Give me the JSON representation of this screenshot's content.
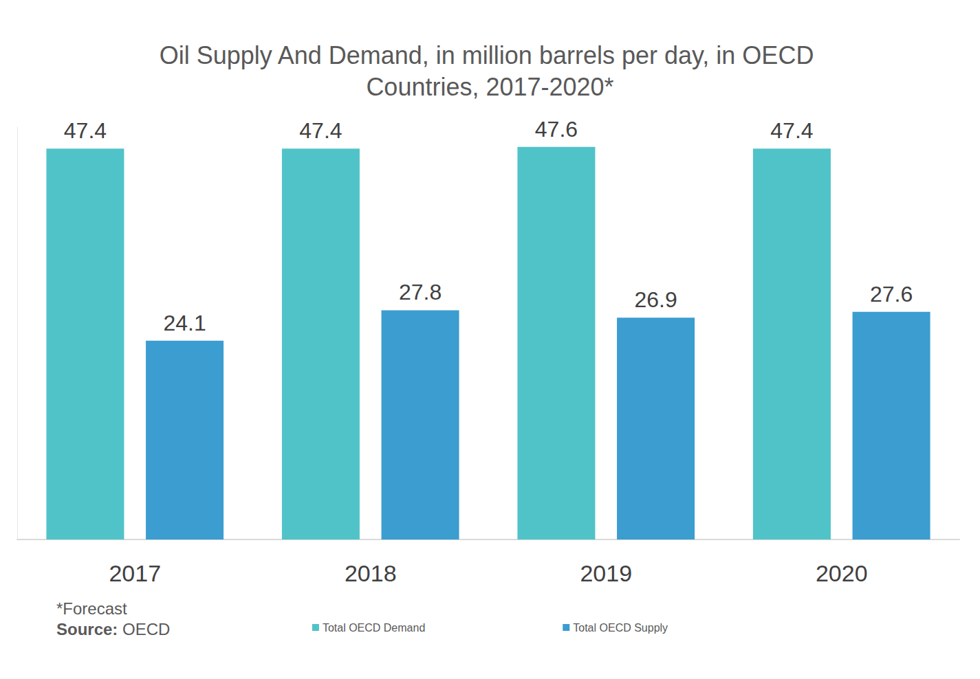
{
  "chart_data": {
    "type": "bar",
    "title": "Oil Supply And Demand, in million barrels per day, in OECD Countries, 2017-2020*",
    "categories": [
      "2017",
      "2018",
      "2019",
      "2020"
    ],
    "series": [
      {
        "name": "Total OECD Demand",
        "color": "#50c3c9",
        "values": [
          47.4,
          47.4,
          47.6,
          47.4
        ]
      },
      {
        "name": "Total OECD Supply",
        "color": "#3b9dd0",
        "values": [
          24.1,
          27.8,
          26.9,
          27.6
        ]
      }
    ],
    "ylim": [
      0,
      50
    ],
    "grid": false,
    "legend": "bottom",
    "data_labels": true,
    "tick_labels": "x",
    "notes": [
      "*Forecast"
    ],
    "source": "Source: OECD"
  }
}
